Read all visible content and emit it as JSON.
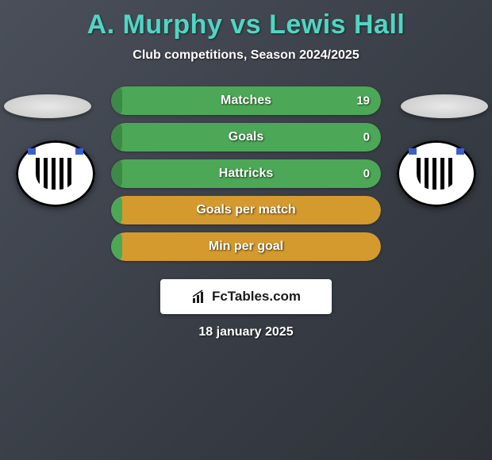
{
  "title": "A. Murphy vs Lewis Hall",
  "subtitle": "Club competitions, Season 2024/2025",
  "date": "18 january 2025",
  "logo_text": "FcTables.com",
  "colors": {
    "title": "#4fd6c4",
    "stat_green": "#4ca856",
    "stat_green_dark": "#3d8a46",
    "stat_orange": "#d49a2e",
    "background_gradient_start": "#4a4f5a",
    "background_gradient_end": "#2e3238",
    "text_white": "#ffffff"
  },
  "stats": [
    {
      "label": "Matches",
      "left_value": "",
      "right_value": "19",
      "bg_color": "#4ca856",
      "fill_color": "#3d8a46",
      "fill_percent": 4
    },
    {
      "label": "Goals",
      "left_value": "",
      "right_value": "0",
      "bg_color": "#4ca856",
      "fill_color": "#3d8a46",
      "fill_percent": 4
    },
    {
      "label": "Hattricks",
      "left_value": "",
      "right_value": "0",
      "bg_color": "#4ca856",
      "fill_color": "#3d8a46",
      "fill_percent": 4
    },
    {
      "label": "Goals per match",
      "left_value": "",
      "right_value": "",
      "bg_color": "#d49a2e",
      "fill_color": "#4ca856",
      "fill_percent": 4
    },
    {
      "label": "Min per goal",
      "left_value": "",
      "right_value": "",
      "bg_color": "#d49a2e",
      "fill_color": "#4ca856",
      "fill_percent": 4
    }
  ],
  "players": {
    "left": {
      "club": "Newcastle United"
    },
    "right": {
      "club": "Newcastle United"
    }
  }
}
